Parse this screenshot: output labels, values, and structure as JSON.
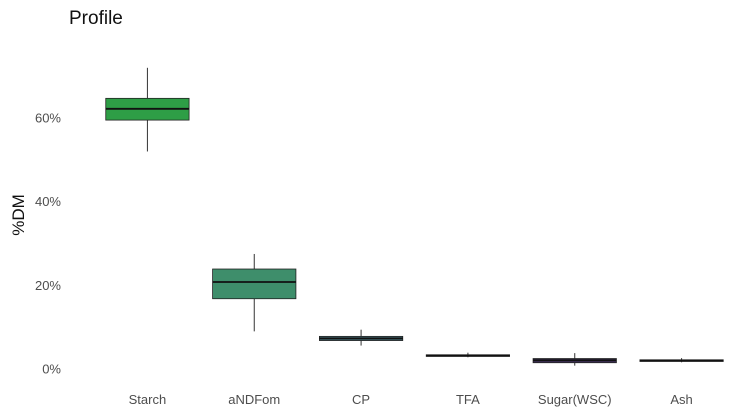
{
  "chart_data": {
    "type": "box",
    "title": "Profile",
    "xlabel": "",
    "ylabel": "%DM",
    "ylim": [
      0,
      75
    ],
    "y_ticks": [
      0,
      20,
      40,
      60
    ],
    "y_tick_labels": [
      "0%",
      "20%",
      "40%",
      "60%"
    ],
    "grid": false,
    "legend": "none",
    "categories": [
      "Starch",
      "aNDFom",
      "CP",
      "TFA",
      "Sugar(WSC)",
      "Ash"
    ],
    "series": [
      {
        "boxes": [
          {
            "category": "Starch",
            "min": 52.0,
            "q1": 59.5,
            "median": 62.2,
            "q3": 64.7,
            "max": 72.0,
            "color": "#2e9e46"
          },
          {
            "category": "aNDFom",
            "min": 9.0,
            "q1": 16.8,
            "median": 20.8,
            "q3": 23.9,
            "max": 27.5,
            "color": "#3e8e6b"
          },
          {
            "category": "CP",
            "min": 5.6,
            "q1": 6.8,
            "median": 7.3,
            "q3": 7.8,
            "max": 9.4,
            "color": "#456f78"
          },
          {
            "category": "TFA",
            "min": 2.8,
            "q1": 3.0,
            "median": 3.2,
            "q3": 3.4,
            "max": 3.9,
            "color": "#43466a"
          },
          {
            "category": "Sugar(WSC)",
            "min": 0.8,
            "q1": 1.5,
            "median": 2.1,
            "q3": 2.5,
            "max": 3.8,
            "color": "#3d2f55"
          },
          {
            "category": "Ash",
            "min": 1.6,
            "q1": 1.8,
            "median": 2.0,
            "q3": 2.2,
            "max": 2.6,
            "color": "#2b1a3d"
          }
        ]
      }
    ]
  }
}
